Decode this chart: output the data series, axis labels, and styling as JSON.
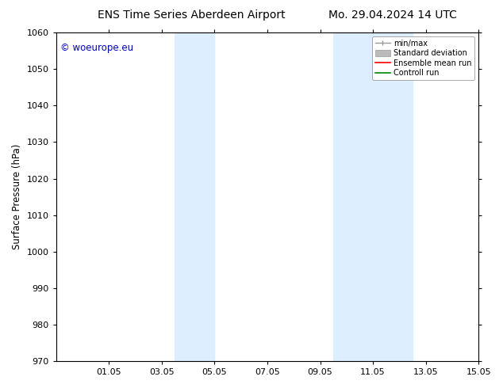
{
  "title_left": "ENS Time Series Aberdeen Airport",
  "title_right": "Mo. 29.04.2024 14 UTC",
  "ylabel": "Surface Pressure (hPa)",
  "ylim": [
    970,
    1060
  ],
  "yticks": [
    970,
    980,
    990,
    1000,
    1010,
    1020,
    1030,
    1040,
    1050,
    1060
  ],
  "xtick_labels": [
    "01.05",
    "03.05",
    "05.05",
    "07.05",
    "09.05",
    "11.05",
    "13.05",
    "15.05"
  ],
  "xtick_positions": [
    2,
    4,
    6,
    8,
    10,
    12,
    14,
    16
  ],
  "x_min": 0,
  "x_max": 16,
  "shaded_regions": [
    {
      "x_start": 4.5,
      "x_end": 6.0,
      "color": "#ddeeff"
    },
    {
      "x_start": 10.5,
      "x_end": 13.5,
      "color": "#ddeeff"
    }
  ],
  "watermark": "© woeurope.eu",
  "watermark_color": "#0000cc",
  "legend_labels": [
    "min/max",
    "Standard deviation",
    "Ensemble mean run",
    "Controll run"
  ],
  "legend_colors": [
    "#999999",
    "#bbbbbb",
    "#ff0000",
    "#008800"
  ],
  "bg_color": "#ffffff",
  "plot_bg_color": "#ffffff",
  "title_fontsize": 10,
  "axis_label_fontsize": 8.5,
  "tick_fontsize": 8,
  "watermark_fontsize": 8.5,
  "legend_fontsize": 7
}
